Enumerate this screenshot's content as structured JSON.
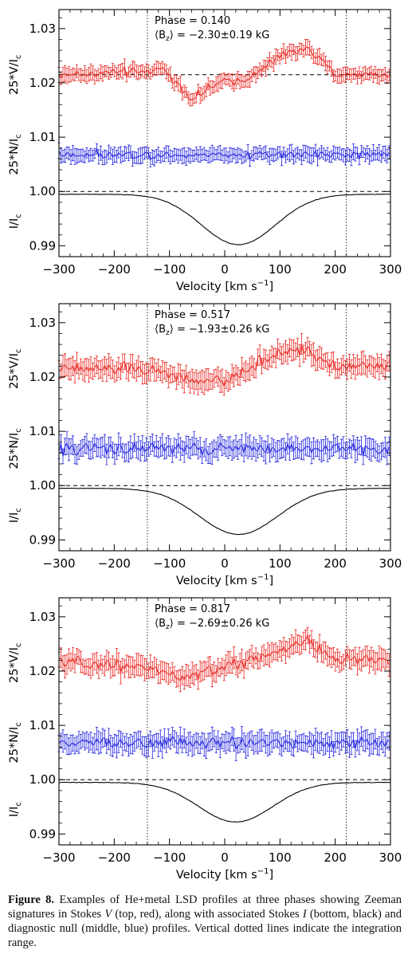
{
  "chart_data": [
    {
      "type": "line",
      "phase_label": "Phase = 0.140",
      "bz_label": "⟨B",
      "bz_sub": "z",
      "bz_value": "⟩ = −2.30±0.19 kG",
      "xlabel": "Velocity [km s",
      "xlabel_sup": "−1",
      "xlabel_end": "]",
      "ylabels": [
        "25*V/I",
        "25*N/I",
        "I/I"
      ],
      "ylabel_sub": "c",
      "xlim": [
        -300,
        300
      ],
      "ylim": [
        0.988,
        1.0335
      ],
      "xticks": [
        "−300",
        "−200",
        "−100",
        "0",
        "100",
        "200",
        "300"
      ],
      "yticks": [
        "0.99",
        "1.00",
        "1.01",
        "1.02",
        "1.03"
      ],
      "integration_range": [
        -140,
        220
      ],
      "reference_lines": [
        1.0,
        1.0215
      ],
      "series": [
        {
          "color": "#e8241f",
          "profile": "V",
          "baseline": 1.0215,
          "key_x": [
            -300,
            -150,
            -110,
            -60,
            -10,
            50,
            100,
            150,
            200,
            300
          ],
          "key_y": [
            1.0215,
            1.022,
            1.0225,
            1.017,
            1.02,
            1.021,
            1.025,
            1.0265,
            1.0215,
            1.0215
          ],
          "err": 0.0012
        },
        {
          "color": "#2020e0",
          "profile": "N",
          "baseline": 1.0068,
          "key_x": [
            -300,
            300
          ],
          "key_y": [
            1.0068,
            1.0068
          ],
          "err": 0.0012
        },
        {
          "color": "#000000",
          "profile": "I",
          "baseline": 0.9995,
          "depth": 0.0093,
          "center": 25,
          "width": 95
        }
      ]
    },
    {
      "type": "line",
      "phase_label": "Phase = 0.517",
      "bz_label": "⟨B",
      "bz_sub": "z",
      "bz_value": "⟩ = −1.93±0.26 kG",
      "xlabel": "Velocity [km s",
      "xlabel_sup": "−1",
      "xlabel_end": "]",
      "ylabels": [
        "25*V/I",
        "25*N/I",
        "I/I"
      ],
      "ylabel_sub": "c",
      "xlim": [
        -300,
        300
      ],
      "ylim": [
        0.988,
        1.0335
      ],
      "xticks": [
        "−300",
        "−200",
        "−100",
        "0",
        "100",
        "200",
        "300"
      ],
      "yticks": [
        "0.99",
        "1.00",
        "1.01",
        "1.02",
        "1.03"
      ],
      "integration_range": [
        -140,
        220
      ],
      "reference_lines": [
        1.0
      ],
      "series": [
        {
          "color": "#e8241f",
          "profile": "V",
          "baseline": 1.0215,
          "key_x": [
            -300,
            -150,
            -60,
            0,
            60,
            100,
            150,
            200,
            300
          ],
          "key_y": [
            1.0215,
            1.0215,
            1.0195,
            1.019,
            1.0225,
            1.0245,
            1.025,
            1.022,
            1.022
          ],
          "err": 0.0017
        },
        {
          "color": "#2020e0",
          "profile": "N",
          "baseline": 1.0068,
          "key_x": [
            -300,
            300
          ],
          "key_y": [
            1.0068,
            1.0068
          ],
          "err": 0.0017
        },
        {
          "color": "#000000",
          "profile": "I",
          "baseline": 0.9995,
          "depth": 0.0085,
          "center": 25,
          "width": 100
        }
      ]
    },
    {
      "type": "line",
      "phase_label": "Phase = 0.817",
      "bz_label": "⟨B",
      "bz_sub": "z",
      "bz_value": "⟩ = −2.69±0.26 kG",
      "xlabel": "Velocity [km s",
      "xlabel_sup": "−1",
      "xlabel_end": "]",
      "ylabels": [
        "25*V/I",
        "25*N/I",
        "I/I"
      ],
      "ylabel_sub": "c",
      "xlim": [
        -300,
        300
      ],
      "ylim": [
        0.988,
        1.0335
      ],
      "xticks": [
        "−300",
        "−200",
        "−100",
        "0",
        "100",
        "200",
        "300"
      ],
      "yticks": [
        "0.99",
        "1.00",
        "1.01",
        "1.02",
        "1.03"
      ],
      "integration_range": [
        -140,
        220
      ],
      "reference_lines": [
        1.0
      ],
      "series": [
        {
          "color": "#e8241f",
          "profile": "V",
          "baseline": 1.0215,
          "key_x": [
            -300,
            -150,
            -110,
            -80,
            -30,
            50,
            100,
            150,
            200,
            300
          ],
          "key_y": [
            1.0215,
            1.021,
            1.02,
            1.0185,
            1.02,
            1.022,
            1.024,
            1.0255,
            1.022,
            1.022
          ],
          "err": 0.0017
        },
        {
          "color": "#2020e0",
          "profile": "N",
          "baseline": 1.0068,
          "key_x": [
            -300,
            300
          ],
          "key_y": [
            1.0068,
            1.0068
          ],
          "err": 0.0017
        },
        {
          "color": "#000000",
          "profile": "I",
          "baseline": 0.9995,
          "depth": 0.0073,
          "center": 20,
          "width": 95
        }
      ]
    }
  ],
  "caption": {
    "label": "Figure 8.",
    "text_1": "Examples of He+metal LSD profiles at three phases showing Zeeman signatures in Stokes ",
    "v_letter": "V",
    "text_2": " (top, red), along with associated Stokes ",
    "i_letter": "I",
    "text_3": " (bottom, black) and diagnostic null (middle, blue) profiles. Vertical dotted lines indicate the integration range."
  }
}
